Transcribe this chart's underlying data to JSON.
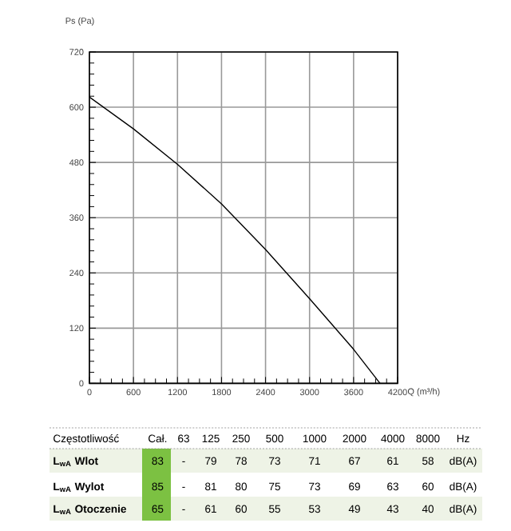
{
  "chart_data": [
    {
      "type": "line",
      "xlabel": "Q (m³/h)",
      "ylabel": "Ps (Pa)",
      "x": [
        0,
        600,
        1200,
        1800,
        2400,
        3000,
        3600,
        3960
      ],
      "series": [
        {
          "color": "#000000",
          "values": [
            622,
            553,
            476,
            390,
            291,
            184,
            74,
            0
          ]
        }
      ],
      "xlim": [
        0,
        4200
      ],
      "ylim": [
        0,
        720
      ],
      "xticks": [
        0,
        600,
        1200,
        1800,
        2400,
        3000,
        3600,
        4200
      ],
      "yticks": [
        0,
        120,
        240,
        360,
        480,
        600,
        720
      ],
      "grid": true
    },
    {
      "type": "other",
      "ylabel": "Częstotliwość",
      "y2label": "Hz",
      "categories": [
        "Cał.",
        "63",
        "125",
        "250",
        "500",
        "1000",
        "2000",
        "4000",
        "8000"
      ],
      "y_categories": [
        "L$_{wA}$ Wlot",
        "L$_{wA}$ Wylot",
        "L$_{wA}$ Otoczenie"
      ],
      "y2_categories": [
        "dB(A)",
        "dB(A)",
        "dB(A)"
      ],
      "cell_labels": [
        [
          "83",
          "-",
          "79",
          "78",
          "73",
          "71",
          "67",
          "61",
          "58"
        ],
        [
          "85",
          "-",
          "81",
          "80",
          "75",
          "73",
          "69",
          "63",
          "60"
        ],
        [
          "65",
          "-",
          "61",
          "60",
          "55",
          "53",
          "49",
          "43",
          "40"
        ]
      ],
      "color": "#7cc142"
    }
  ]
}
